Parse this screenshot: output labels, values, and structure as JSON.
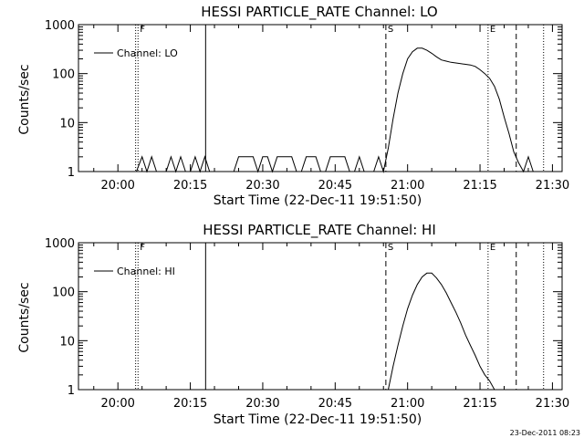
{
  "chart_data": [
    {
      "type": "line",
      "title": "HESSI PARTICLE_RATE Channel: LO",
      "xlabel": "Start Time (22-Dec-11 19:51:50)",
      "ylabel": "Counts/sec",
      "yscale": "log",
      "ylim": [
        1,
        1000
      ],
      "xlim": [
        "19:51:50",
        "21:32:00"
      ],
      "x_tick_labels": [
        "20:00",
        "20:15",
        "20:30",
        "20:45",
        "21:00",
        "21:15",
        "21:30"
      ],
      "y_tick_labels": [
        "1",
        "10",
        "100",
        "1000"
      ],
      "legend": {
        "entries": [
          "Channel: LO"
        ],
        "position": "top-left"
      },
      "grid": false,
      "vertical_markers": [
        {
          "time": "20:03:40",
          "style": "dotted",
          "label": ""
        },
        {
          "time": "20:04:10",
          "style": "dotted",
          "label": "F"
        },
        {
          "time": "20:18:10",
          "style": "solid",
          "label": ""
        },
        {
          "time": "20:55:30",
          "style": "dashed",
          "label": "S"
        },
        {
          "time": "21:16:40",
          "style": "dotted",
          "label": "E"
        },
        {
          "time": "21:22:30",
          "style": "dashed",
          "label": ""
        },
        {
          "time": "21:28:10",
          "style": "dotted",
          "label": ""
        }
      ],
      "series": [
        {
          "name": "Channel: LO",
          "x": [
            "20:03:50",
            "20:05:00",
            "20:06:00",
            "20:07:00",
            "20:08:00",
            "20:09:00",
            "20:10:00",
            "20:11:00",
            "20:12:00",
            "20:13:00",
            "20:14:00",
            "20:15:00",
            "20:16:00",
            "20:17:00",
            "20:18:00",
            "20:19:00",
            "20:20:00",
            "20:21:00",
            "20:22:00",
            "20:23:00",
            "20:24:00",
            "20:25:00",
            "20:26:00",
            "20:27:00",
            "20:28:00",
            "20:29:00",
            "20:30:00",
            "20:31:00",
            "20:32:00",
            "20:33:00",
            "20:34:00",
            "20:35:00",
            "20:36:00",
            "20:37:00",
            "20:38:00",
            "20:39:00",
            "20:40:00",
            "20:41:00",
            "20:42:00",
            "20:43:00",
            "20:44:00",
            "20:45:00",
            "20:46:00",
            "20:47:00",
            "20:48:00",
            "20:49:00",
            "20:50:00",
            "20:51:00",
            "20:52:00",
            "20:53:00",
            "20:54:00",
            "20:55:00",
            "20:56:00",
            "20:57:00",
            "20:58:00",
            "20:59:00",
            "21:00:00",
            "21:01:00",
            "21:02:00",
            "21:03:00",
            "21:04:00",
            "21:05:00",
            "21:06:00",
            "21:07:00",
            "21:08:00",
            "21:09:00",
            "21:10:00",
            "21:11:00",
            "21:12:00",
            "21:13:00",
            "21:14:00",
            "21:15:00",
            "21:16:00",
            "21:17:00",
            "21:18:00",
            "21:19:00",
            "21:20:00",
            "21:21:00",
            "21:22:00",
            "21:23:00",
            "21:24:00",
            "21:25:00",
            "21:26:00"
          ],
          "values": [
            1,
            2,
            1,
            2,
            1,
            1,
            1,
            2,
            1,
            2,
            1,
            1,
            2,
            1,
            2,
            1,
            1,
            1,
            1,
            1,
            1,
            2,
            2,
            2,
            2,
            1,
            2,
            2,
            1,
            2,
            2,
            2,
            2,
            1,
            1,
            2,
            2,
            2,
            1,
            1,
            2,
            2,
            2,
            2,
            1,
            1,
            2,
            1,
            1,
            1,
            2,
            1,
            3,
            12,
            40,
            100,
            200,
            280,
            330,
            330,
            300,
            260,
            220,
            190,
            180,
            170,
            165,
            160,
            155,
            150,
            140,
            120,
            100,
            80,
            55,
            30,
            13,
            6,
            2.5,
            1.5,
            1,
            2,
            1
          ]
        }
      ]
    },
    {
      "type": "line",
      "title": "HESSI PARTICLE_RATE Channel: HI",
      "xlabel": "Start Time (22-Dec-11 19:51:50)",
      "ylabel": "Counts/sec",
      "yscale": "log",
      "ylim": [
        1,
        1000
      ],
      "xlim": [
        "19:51:50",
        "21:32:00"
      ],
      "x_tick_labels": [
        "20:00",
        "20:15",
        "20:30",
        "20:45",
        "21:00",
        "21:15",
        "21:30"
      ],
      "y_tick_labels": [
        "1",
        "10",
        "100",
        "1000"
      ],
      "legend": {
        "entries": [
          "Channel: HI"
        ],
        "position": "top-left"
      },
      "grid": false,
      "vertical_markers": [
        {
          "time": "20:03:40",
          "style": "dotted",
          "label": ""
        },
        {
          "time": "20:04:10",
          "style": "dotted",
          "label": "F"
        },
        {
          "time": "20:18:10",
          "style": "solid",
          "label": ""
        },
        {
          "time": "20:55:30",
          "style": "dashed",
          "label": "S"
        },
        {
          "time": "21:16:40",
          "style": "dotted",
          "label": "E"
        },
        {
          "time": "21:22:30",
          "style": "dashed",
          "label": ""
        },
        {
          "time": "21:28:10",
          "style": "dotted",
          "label": ""
        }
      ],
      "series": [
        {
          "name": "Channel: HI",
          "x": [
            "20:56:00",
            "20:57:00",
            "20:58:00",
            "20:59:00",
            "21:00:00",
            "21:01:00",
            "21:02:00",
            "21:03:00",
            "21:04:00",
            "21:05:00",
            "21:06:00",
            "21:07:00",
            "21:08:00",
            "21:09:00",
            "21:10:00",
            "21:11:00",
            "21:12:00",
            "21:13:00",
            "21:14:00",
            "21:15:00",
            "21:16:00",
            "21:17:00",
            "21:18:00"
          ],
          "values": [
            1,
            3,
            8,
            20,
            45,
            85,
            140,
            200,
            240,
            240,
            190,
            140,
            95,
            60,
            38,
            23,
            13,
            8,
            5,
            3,
            2,
            1.5,
            1
          ]
        }
      ]
    }
  ],
  "timestamp": "23-Dec-2011 08:23"
}
